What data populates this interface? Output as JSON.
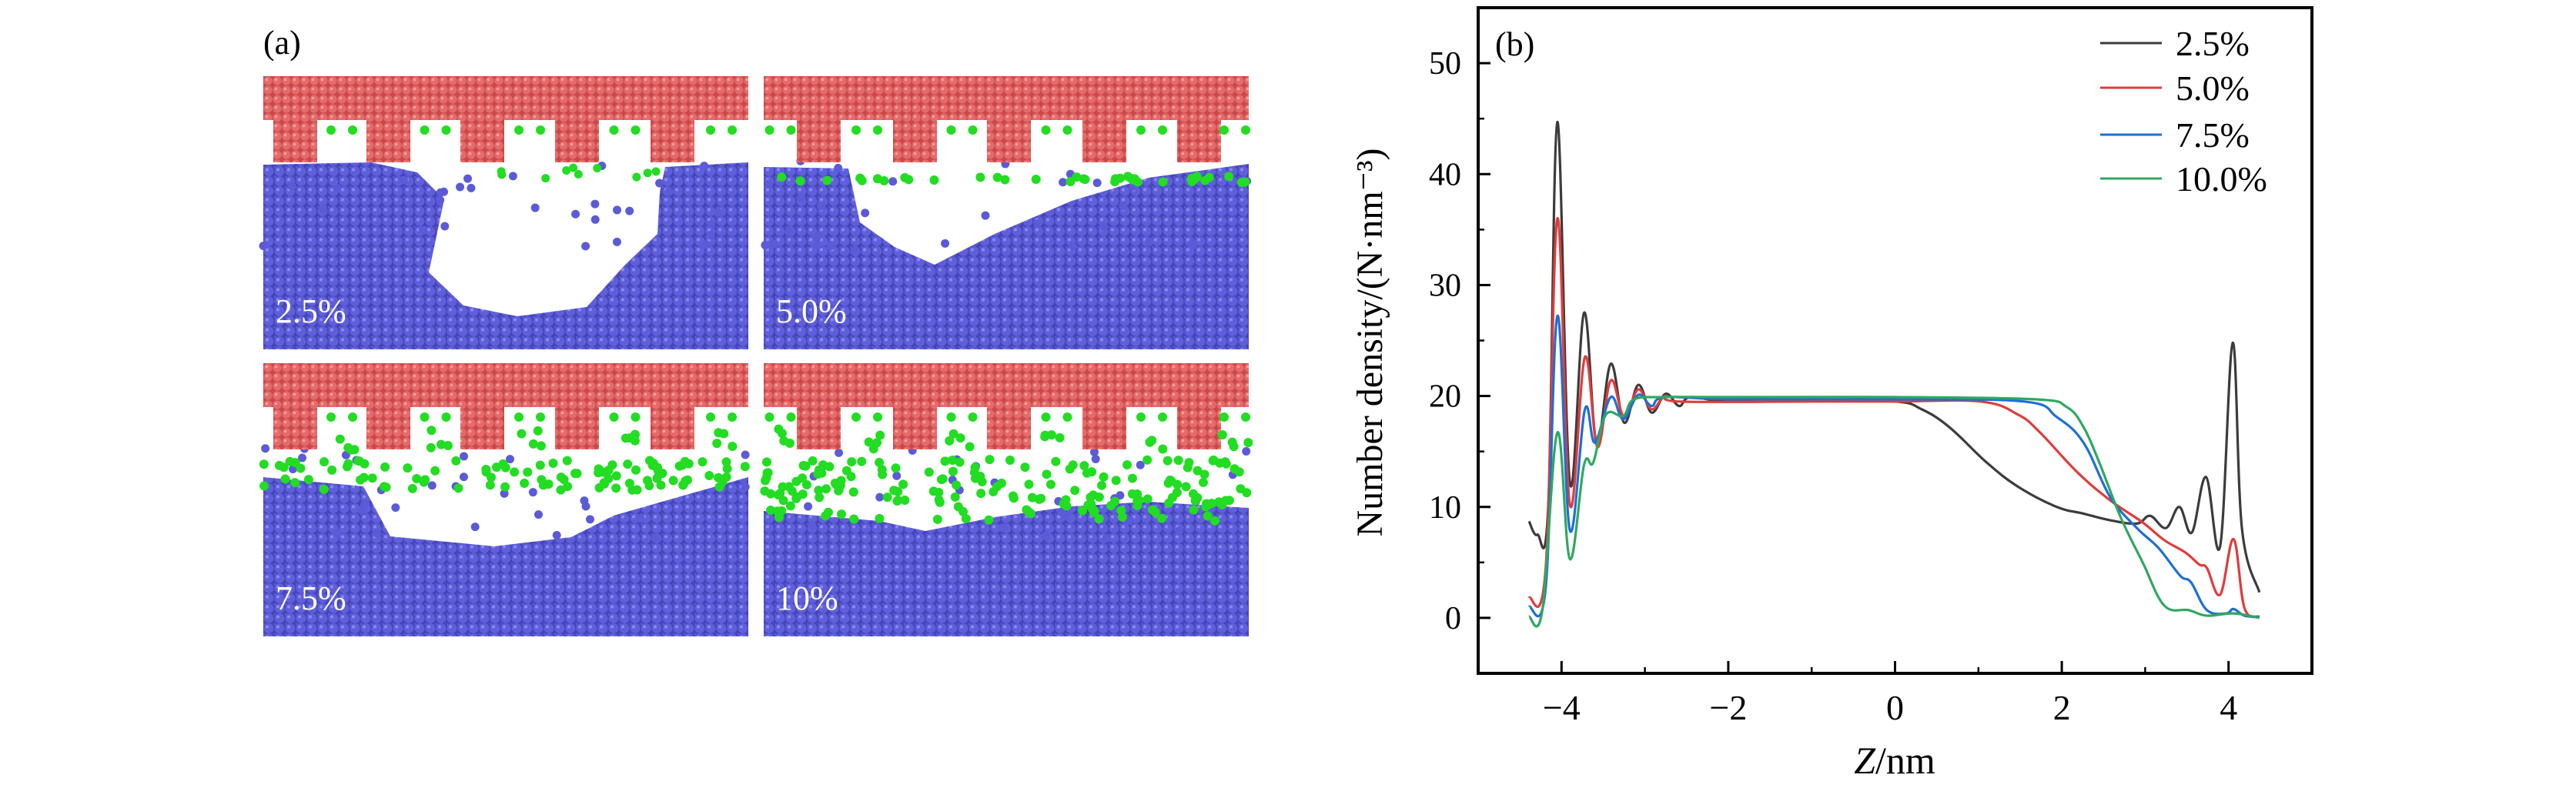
{
  "panel_a": {
    "label": "(a)",
    "snapshots": [
      {
        "label": "2.5%"
      },
      {
        "label": "5.0%"
      },
      {
        "label": "7.5%"
      },
      {
        "label": "10%"
      }
    ],
    "colors": {
      "substrate": "#e26060",
      "liquid": "#5b5bd8",
      "additive": "#22dd22"
    }
  },
  "chart_data": {
    "type": "line",
    "panel_label": "(b)",
    "xlabel": "Z/nm",
    "ylabel": "Number density/(N·nm⁻³)",
    "xlim": [
      -5,
      5
    ],
    "ylim": [
      -5,
      55
    ],
    "xticks": [
      -4,
      -2,
      0,
      2,
      4
    ],
    "xtick_labels": [
      "−4",
      "−2",
      "0",
      "2",
      "4"
    ],
    "yticks": [
      0,
      10,
      20,
      30,
      40,
      50
    ],
    "ytick_labels": [
      "0",
      "10",
      "20",
      "30",
      "40",
      "50"
    ],
    "grid": false,
    "legend": "top-right",
    "series": [
      {
        "name": "2.5%",
        "color": "#3c3c3c",
        "points": [
          [
            -4.39,
            8.7
          ],
          [
            -4.29,
            7.5
          ],
          [
            -4.16,
            10
          ],
          [
            -4.05,
            44.7
          ],
          [
            -3.9,
            12.2
          ],
          [
            -3.73,
            27.5
          ],
          [
            -3.58,
            15.8
          ],
          [
            -3.41,
            22.9
          ],
          [
            -3.25,
            17.6
          ],
          [
            -3.08,
            21
          ],
          [
            -2.92,
            18.5
          ],
          [
            -2.75,
            20.2
          ],
          [
            -2.59,
            19.1
          ],
          [
            -2.45,
            19.9
          ],
          [
            -2,
            19.5
          ],
          [
            -1,
            19.6
          ],
          [
            0,
            19.5
          ],
          [
            0.32,
            18.8
          ],
          [
            0.65,
            17.2
          ],
          [
            1.1,
            14
          ],
          [
            1.48,
            11.8
          ],
          [
            1.94,
            10
          ],
          [
            2.26,
            9.4
          ],
          [
            2.58,
            8.8
          ],
          [
            2.9,
            8.5
          ],
          [
            3.06,
            9.2
          ],
          [
            3.25,
            8.1
          ],
          [
            3.41,
            10
          ],
          [
            3.56,
            7.7
          ],
          [
            3.73,
            12.7
          ],
          [
            3.9,
            6.5
          ],
          [
            4.05,
            24.8
          ],
          [
            4.16,
            8.1
          ],
          [
            4.37,
            2.3
          ]
        ]
      },
      {
        "name": "5.0%",
        "color": "#e03c3c",
        "points": [
          [
            -4.39,
            1.8
          ],
          [
            -4.19,
            4.5
          ],
          [
            -4.05,
            36
          ],
          [
            -3.9,
            10.2
          ],
          [
            -3.72,
            23.5
          ],
          [
            -3.57,
            15.4
          ],
          [
            -3.41,
            21.4
          ],
          [
            -3.25,
            18.1
          ],
          [
            -3.08,
            20.6
          ],
          [
            -2.92,
            18.8
          ],
          [
            -2.76,
            20
          ],
          [
            -2.58,
            19.5
          ],
          [
            -1,
            19.5
          ],
          [
            0,
            19.5
          ],
          [
            1.03,
            19.5
          ],
          [
            1.48,
            18.3
          ],
          [
            1.74,
            16.7
          ],
          [
            2.19,
            13.1
          ],
          [
            2.58,
            10.6
          ],
          [
            2.97,
            8.6
          ],
          [
            3.23,
            7
          ],
          [
            3.48,
            5.9
          ],
          [
            3.65,
            4.8
          ],
          [
            3.74,
            4.5
          ],
          [
            3.9,
            2.1
          ],
          [
            4.06,
            7.1
          ],
          [
            4.19,
            0.9
          ],
          [
            4.37,
            0.1
          ]
        ]
      },
      {
        "name": "7.5%",
        "color": "#1f6fd6",
        "points": [
          [
            -4.39,
            1
          ],
          [
            -4.19,
            2.7
          ],
          [
            -4.05,
            27.2
          ],
          [
            -3.9,
            7.9
          ],
          [
            -3.72,
            18.8
          ],
          [
            -3.6,
            15.8
          ],
          [
            -3.41,
            19.9
          ],
          [
            -3.26,
            17.9
          ],
          [
            -3.08,
            20.1
          ],
          [
            -2.92,
            19.1
          ],
          [
            -2.76,
            19.9
          ],
          [
            -2,
            19.7
          ],
          [
            0,
            19.7
          ],
          [
            1.55,
            19.5
          ],
          [
            1.94,
            18.1
          ],
          [
            2.26,
            15.8
          ],
          [
            2.58,
            10.9
          ],
          [
            2.9,
            8.1
          ],
          [
            3.16,
            6.3
          ],
          [
            3.42,
            3.8
          ],
          [
            3.55,
            3.2
          ],
          [
            3.74,
            0.7
          ],
          [
            3.97,
            0.4
          ],
          [
            4.06,
            0.8
          ],
          [
            4.19,
            0.2
          ],
          [
            4.37,
            0.1
          ]
        ]
      },
      {
        "name": "10.0%",
        "color": "#2fa860",
        "points": [
          [
            -4.39,
            0.1
          ],
          [
            -4.23,
            0.7
          ],
          [
            -4.05,
            16.7
          ],
          [
            -3.9,
            5.3
          ],
          [
            -3.73,
            13.8
          ],
          [
            -3.62,
            14
          ],
          [
            -3.47,
            18.3
          ],
          [
            -3.26,
            18.2
          ],
          [
            -3.13,
            19.7
          ],
          [
            -2.76,
            19.9
          ],
          [
            -2,
            19.9
          ],
          [
            0,
            19.9
          ],
          [
            1.68,
            19.7
          ],
          [
            2.06,
            19
          ],
          [
            2.26,
            17.2
          ],
          [
            2.45,
            14
          ],
          [
            2.71,
            9
          ],
          [
            2.97,
            5
          ],
          [
            3.23,
            1.1
          ],
          [
            3.52,
            0.7
          ],
          [
            3.74,
            0.2
          ],
          [
            4.06,
            0.4
          ],
          [
            4.37,
            0
          ]
        ]
      }
    ]
  }
}
